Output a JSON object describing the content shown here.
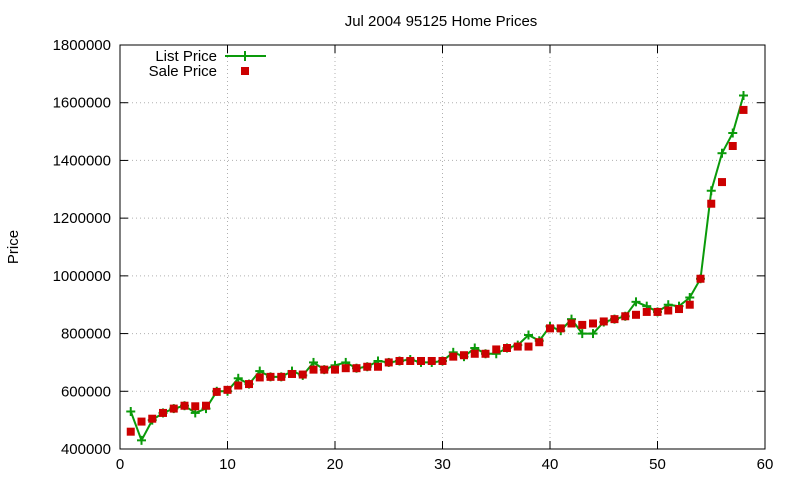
{
  "chart_data": {
    "type": "line",
    "title": "Jul 2004 95125 Home Prices",
    "xlabel": "",
    "ylabel": "Price",
    "xlim": [
      0,
      60
    ],
    "ylim": [
      400000,
      1800000
    ],
    "x_ticks": [
      0,
      10,
      20,
      30,
      40,
      50,
      60
    ],
    "y_ticks": [
      400000,
      600000,
      800000,
      1000000,
      1200000,
      1400000,
      1600000,
      1800000
    ],
    "grid": true,
    "legend_position": "top-left",
    "series": [
      {
        "name": "List Price",
        "style": "line+plus",
        "color": "#0a9a0a",
        "points": [
          [
            1,
            530000
          ],
          [
            2,
            430000
          ],
          [
            3,
            500000
          ],
          [
            4,
            525000
          ],
          [
            5,
            540000
          ],
          [
            6,
            550000
          ],
          [
            7,
            525000
          ],
          [
            8,
            540000
          ],
          [
            9,
            600000
          ],
          [
            10,
            600000
          ],
          [
            11,
            645000
          ],
          [
            12,
            625000
          ],
          [
            13,
            670000
          ],
          [
            14,
            650000
          ],
          [
            15,
            650000
          ],
          [
            16,
            670000
          ],
          [
            17,
            655000
          ],
          [
            18,
            700000
          ],
          [
            19,
            675000
          ],
          [
            20,
            690000
          ],
          [
            21,
            700000
          ],
          [
            22,
            680000
          ],
          [
            23,
            685000
          ],
          [
            24,
            705000
          ],
          [
            25,
            700000
          ],
          [
            26,
            705000
          ],
          [
            27,
            710000
          ],
          [
            28,
            700000
          ],
          [
            29,
            700000
          ],
          [
            30,
            705000
          ],
          [
            31,
            735000
          ],
          [
            32,
            720000
          ],
          [
            33,
            750000
          ],
          [
            34,
            730000
          ],
          [
            35,
            730000
          ],
          [
            36,
            750000
          ],
          [
            37,
            760000
          ],
          [
            38,
            795000
          ],
          [
            39,
            775000
          ],
          [
            40,
            825000
          ],
          [
            41,
            810000
          ],
          [
            42,
            850000
          ],
          [
            43,
            800000
          ],
          [
            44,
            800000
          ],
          [
            45,
            840000
          ],
          [
            46,
            850000
          ],
          [
            47,
            860000
          ],
          [
            48,
            910000
          ],
          [
            49,
            895000
          ],
          [
            50,
            875000
          ],
          [
            51,
            900000
          ],
          [
            52,
            895000
          ],
          [
            53,
            925000
          ],
          [
            54,
            990000
          ],
          [
            55,
            1295000
          ],
          [
            56,
            1425000
          ],
          [
            57,
            1495000
          ],
          [
            58,
            1625000
          ]
        ]
      },
      {
        "name": "Sale Price",
        "style": "square-points",
        "color": "#cc0000",
        "points": [
          [
            1,
            460000
          ],
          [
            2,
            495000
          ],
          [
            3,
            505000
          ],
          [
            4,
            525000
          ],
          [
            5,
            540000
          ],
          [
            6,
            550000
          ],
          [
            7,
            548000
          ],
          [
            8,
            550000
          ],
          [
            9,
            598000
          ],
          [
            10,
            605000
          ],
          [
            11,
            620000
          ],
          [
            12,
            625000
          ],
          [
            13,
            648000
          ],
          [
            14,
            650000
          ],
          [
            15,
            650000
          ],
          [
            16,
            660000
          ],
          [
            17,
            658000
          ],
          [
            18,
            675000
          ],
          [
            19,
            675000
          ],
          [
            20,
            675000
          ],
          [
            21,
            680000
          ],
          [
            22,
            680000
          ],
          [
            23,
            685000
          ],
          [
            24,
            685000
          ],
          [
            25,
            700000
          ],
          [
            26,
            705000
          ],
          [
            27,
            705000
          ],
          [
            28,
            705000
          ],
          [
            29,
            705000
          ],
          [
            30,
            705000
          ],
          [
            31,
            720000
          ],
          [
            32,
            725000
          ],
          [
            33,
            730000
          ],
          [
            34,
            730000
          ],
          [
            35,
            745000
          ],
          [
            36,
            750000
          ],
          [
            37,
            755000
          ],
          [
            38,
            755000
          ],
          [
            39,
            770000
          ],
          [
            40,
            818000
          ],
          [
            41,
            818000
          ],
          [
            42,
            835000
          ],
          [
            43,
            830000
          ],
          [
            44,
            835000
          ],
          [
            45,
            842000
          ],
          [
            46,
            850000
          ],
          [
            47,
            860000
          ],
          [
            48,
            865000
          ],
          [
            49,
            875000
          ],
          [
            50,
            875000
          ],
          [
            51,
            880000
          ],
          [
            52,
            885000
          ],
          [
            53,
            900000
          ],
          [
            54,
            990000
          ],
          [
            55,
            1250000
          ],
          [
            56,
            1325000
          ],
          [
            57,
            1450000
          ],
          [
            58,
            1575000
          ]
        ]
      }
    ]
  }
}
